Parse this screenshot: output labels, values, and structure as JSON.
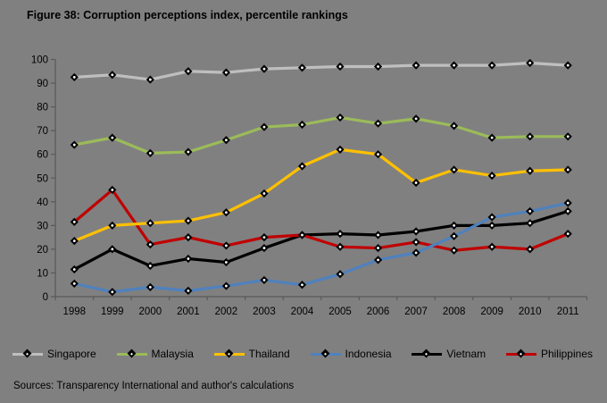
{
  "title": "Figure 38: Corruption perceptions index, percentile rankings",
  "source_note": "Sources: Transparency International and author's calculations",
  "colors": {
    "background": "#808080",
    "axis": "#595959",
    "text": "#000000",
    "marker_fill": "#000000",
    "marker_center": "#ffffff"
  },
  "chart_data": {
    "type": "line",
    "title": "Figure 38: Corruption perceptions index, percentile rankings",
    "xlabel": "",
    "ylabel": "",
    "ylim": [
      0,
      100
    ],
    "ytick_step": 10,
    "yticks": [
      0,
      10,
      20,
      30,
      40,
      50,
      60,
      70,
      80,
      90,
      100
    ],
    "grid": false,
    "legend_position": "bottom",
    "marker": "diamond",
    "categories": [
      "1998",
      "1999",
      "2000",
      "2001",
      "2002",
      "2003",
      "2004",
      "2005",
      "2006",
      "2007",
      "2008",
      "2009",
      "2010",
      "2011"
    ],
    "series": [
      {
        "name": "Singapore",
        "color": "#BFBFBF",
        "values": [
          92.5,
          93.5,
          91.5,
          95,
          94.5,
          96,
          96.5,
          97,
          97,
          97.5,
          97.5,
          97.5,
          98.5,
          97.5
        ]
      },
      {
        "name": "Malaysia",
        "color": "#9BBB59",
        "values": [
          64,
          67,
          60.5,
          61,
          66,
          71.5,
          72.5,
          75.5,
          73,
          75,
          72,
          67,
          67.5,
          67.5
        ]
      },
      {
        "name": "Thailand",
        "color": "#FFC000",
        "values": [
          23.5,
          30,
          31,
          32,
          35.5,
          43.5,
          55,
          62,
          60,
          48,
          53.5,
          51,
          53,
          53.5
        ]
      },
      {
        "name": "Indonesia",
        "color": "#4F81BD",
        "values": [
          5.5,
          2,
          4,
          2.5,
          4.5,
          7,
          5,
          9.5,
          15.5,
          18.5,
          25.5,
          33.5,
          36,
          39.5
        ]
      },
      {
        "name": "Vietnam",
        "color": "#000000",
        "values": [
          11.5,
          20,
          13,
          16,
          14.5,
          20.5,
          26,
          26.5,
          26,
          27.5,
          30,
          30,
          31,
          36
        ]
      },
      {
        "name": "Philippines",
        "color": "#C00000",
        "values": [
          31.5,
          45,
          22,
          25,
          21.5,
          25,
          26,
          21,
          20.5,
          23,
          19.5,
          21,
          20,
          26.5
        ]
      }
    ],
    "z_order": [
      4,
      5,
      0,
      1,
      2,
      3
    ]
  }
}
